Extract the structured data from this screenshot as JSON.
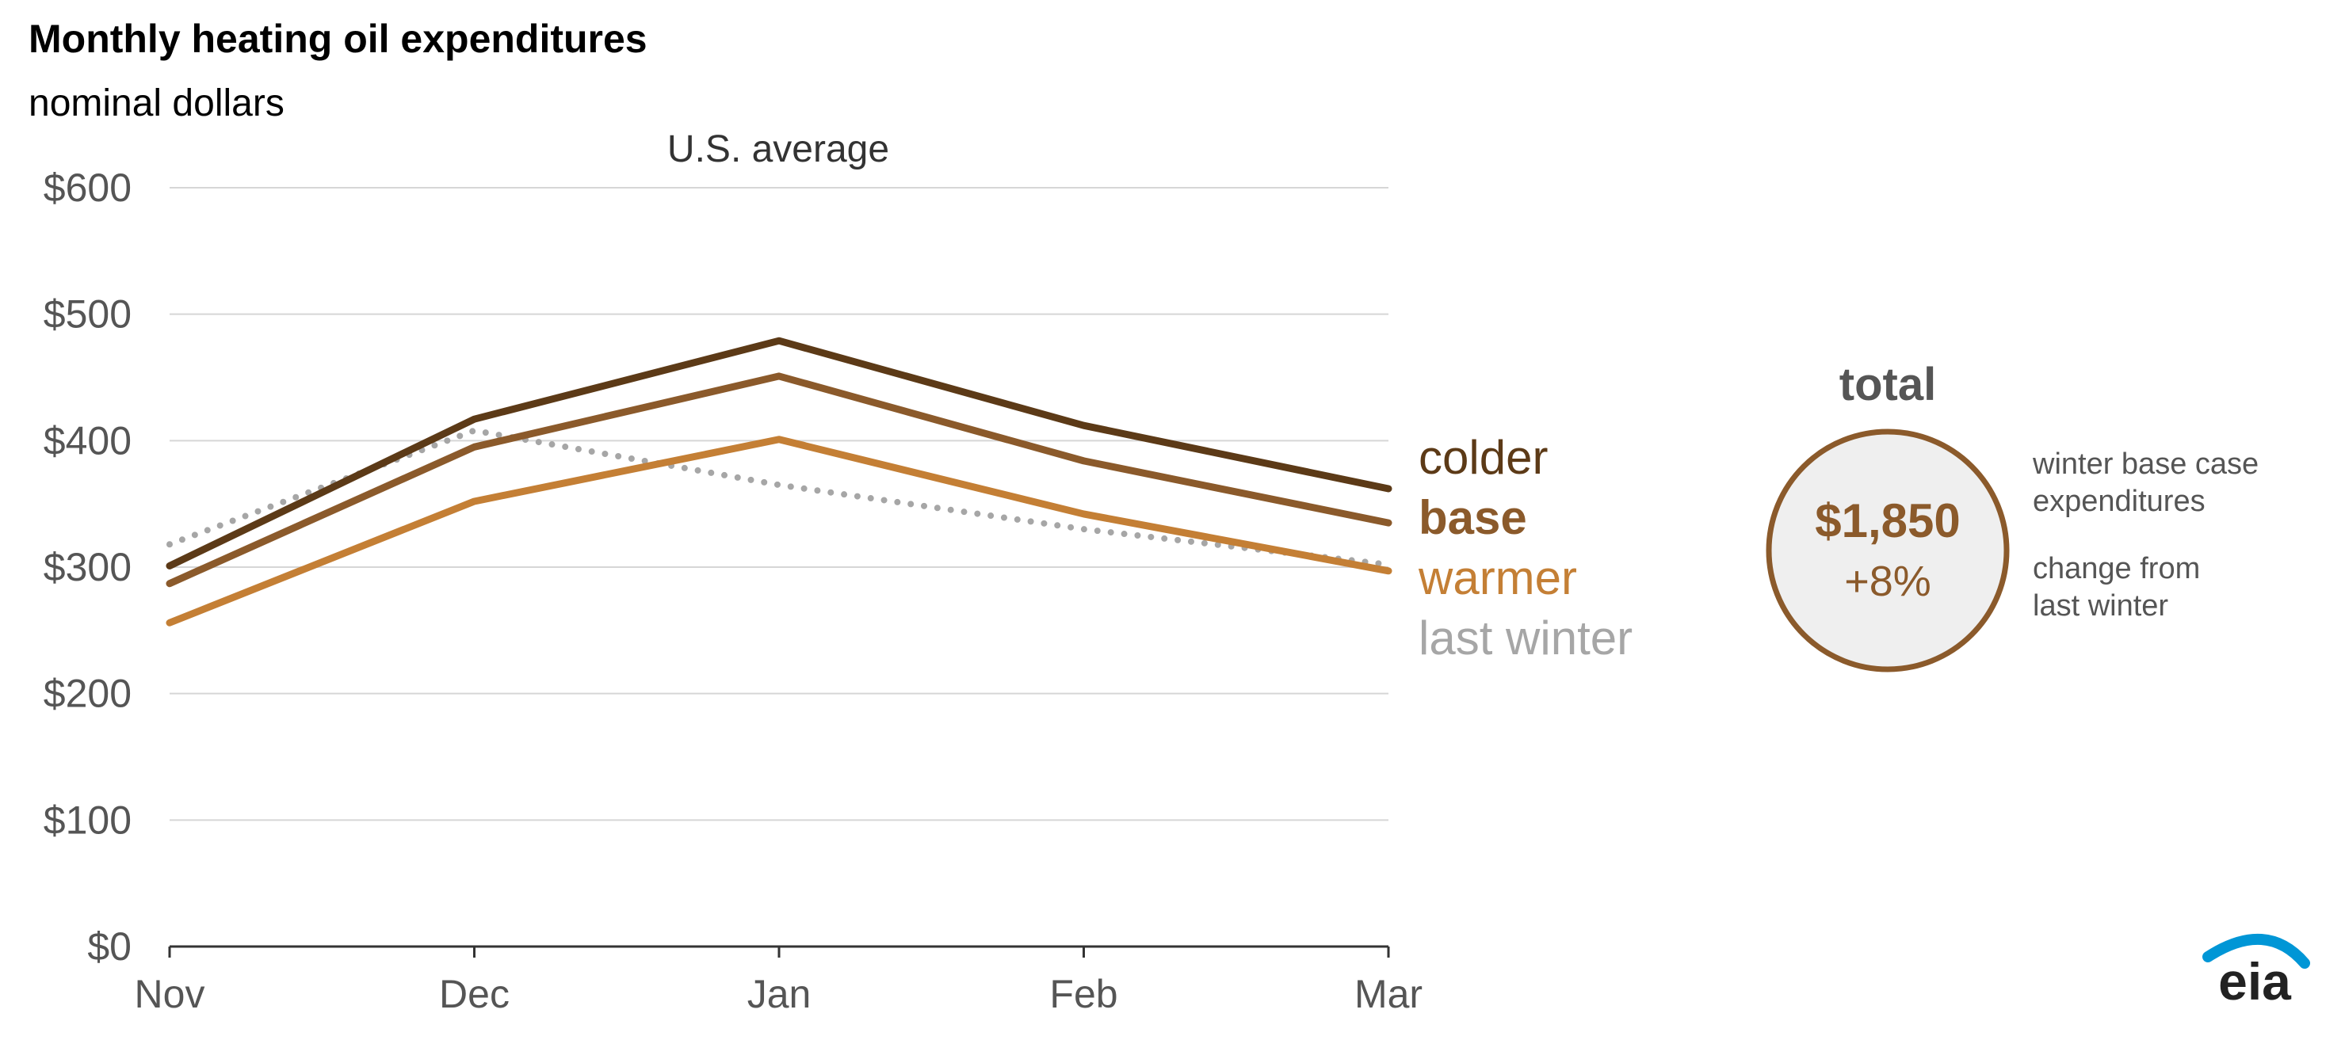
{
  "header": {
    "title": "Monthly heating oil expenditures",
    "subtitle": "nominal dollars"
  },
  "chart_data": {
    "type": "line",
    "title": "Monthly heating oil expenditures",
    "subtitle": "nominal dollars",
    "panel_label": "U.S. average",
    "xlabel": "",
    "ylabel": "",
    "categories": [
      "Nov",
      "Dec",
      "Jan",
      "Feb",
      "Mar"
    ],
    "y_ticks": [
      0,
      100,
      200,
      300,
      400,
      500,
      600
    ],
    "y_tick_labels": [
      "$0",
      "$100",
      "$200",
      "$300",
      "$400",
      "$500",
      "$600"
    ],
    "ylim": [
      0,
      600
    ],
    "grid": true,
    "legend_placement": "right",
    "series": [
      {
        "name": "colder",
        "values": [
          301,
          417,
          479,
          412,
          362
        ],
        "color": "#5c3a17",
        "style": "solid",
        "label_bold": false
      },
      {
        "name": "base",
        "values": [
          287,
          395,
          451,
          384,
          335
        ],
        "color": "#8b5a2b",
        "style": "solid",
        "label_bold": true
      },
      {
        "name": "warmer",
        "values": [
          256,
          352,
          401,
          342,
          297
        ],
        "color": "#c47f35",
        "style": "solid",
        "label_bold": false
      },
      {
        "name": "last winter",
        "values": [
          318,
          408,
          365,
          330,
          302
        ],
        "color": "#a6a6a6",
        "style": "dotted",
        "label_bold": false
      }
    ]
  },
  "summary": {
    "heading": "total",
    "value": "$1,850",
    "change": "+8%",
    "value_note": "winter base case expenditures",
    "change_note": "change from last winter",
    "ring_color": "#8b5a2b",
    "fill_color": "#efefef"
  },
  "logo": {
    "text": "eia",
    "icon": "eia-logo-arc-icon",
    "accent_color": "#0096d6"
  }
}
